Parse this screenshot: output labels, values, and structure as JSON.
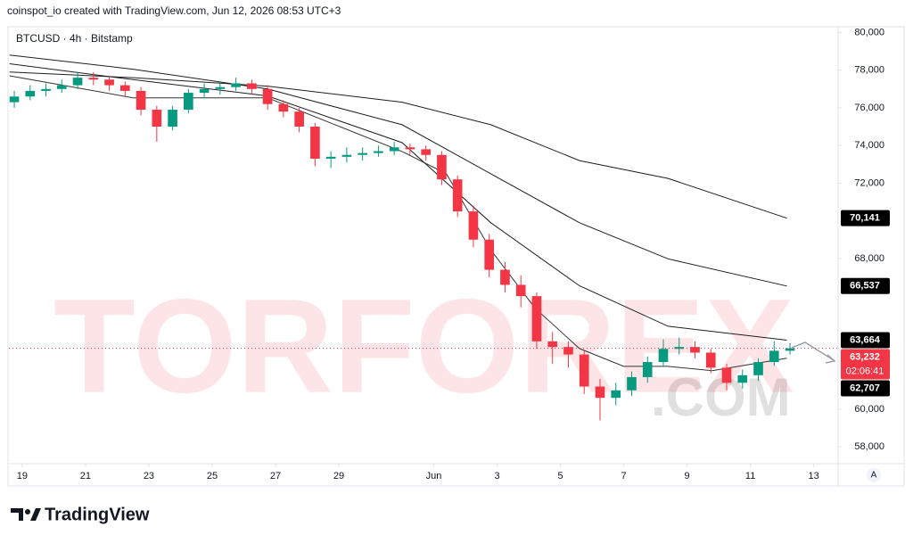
{
  "chart_data": {
    "type": "candlestick",
    "header": "coinspot_io created with TradingView.com, Jun 12, 2026 08:53 UTC+3",
    "title": "BTCUSD · 4h · Bitstamp",
    "brand": "TradingView",
    "scale_button": "A",
    "watermark": [
      "TORFOREX",
      ".COM"
    ],
    "up_color": "#089981",
    "down_color": "#f23645",
    "x": [
      18.75,
      19.25,
      19.75,
      20.25,
      20.75,
      21.25,
      21.75,
      22.25,
      22.75,
      23.25,
      23.75,
      24.25,
      24.75,
      25.25,
      25.75,
      26.25,
      26.75,
      27.25,
      27.75,
      28.25,
      28.75,
      29.25,
      29.75,
      30.25,
      30.75,
      31.25,
      31.75,
      32.25,
      32.75,
      33.25,
      33.75,
      34.25,
      34.75,
      35.25,
      35.75,
      36.25,
      36.75,
      37.25,
      37.75,
      38.25,
      38.75,
      39.25,
      39.75,
      40.25,
      40.75,
      41.25,
      41.75,
      42.25,
      42.75,
      43.25
    ],
    "open": [
      76300,
      76600,
      76900,
      77000,
      77200,
      77600,
      77500,
      77200,
      76900,
      75900,
      75000,
      75900,
      76800,
      77000,
      77100,
      77300,
      77000,
      76200,
      75800,
      75000,
      73300,
      73400,
      73500,
      73600,
      73700,
      73900,
      73800,
      73500,
      72200,
      70500,
      69000,
      67400,
      66600,
      66000,
      63600,
      63300,
      62900,
      61200,
      60600,
      61000,
      61700,
      62500,
      63200,
      63300,
      63000,
      62200,
      61400,
      61800,
      62500,
      63100
    ],
    "high": [
      76900,
      77200,
      77300,
      77500,
      77900,
      77900,
      77700,
      77400,
      77100,
      76100,
      76100,
      77000,
      77300,
      77400,
      77600,
      77500,
      77200,
      76400,
      76000,
      75200,
      73700,
      73900,
      73900,
      74000,
      74200,
      74100,
      74000,
      73700,
      72400,
      70800,
      69300,
      67800,
      67100,
      66200,
      64100,
      63600,
      63100,
      61600,
      61400,
      62000,
      62800,
      63700,
      63800,
      63600,
      63200,
      62400,
      62100,
      62700,
      63600,
      63500
    ],
    "low": [
      76000,
      76400,
      76600,
      76800,
      77000,
      77200,
      76900,
      76600,
      75600,
      74200,
      74800,
      75700,
      76500,
      76700,
      76900,
      76700,
      75900,
      75500,
      74700,
      72900,
      72800,
      73100,
      73200,
      73400,
      73500,
      73500,
      73200,
      71900,
      70200,
      68600,
      67000,
      66200,
      65400,
      63200,
      62400,
      62200,
      60800,
      59400,
      60200,
      60700,
      61400,
      62300,
      62900,
      62700,
      61900,
      61000,
      61100,
      61500,
      62300,
      62900
    ],
    "close": [
      76600,
      76900,
      77000,
      77200,
      77600,
      77500,
      77200,
      76900,
      75900,
      75000,
      75900,
      76800,
      77000,
      77100,
      77300,
      77000,
      76200,
      75800,
      75000,
      73300,
      73400,
      73500,
      73600,
      73700,
      73900,
      73800,
      73500,
      72200,
      70500,
      69000,
      67400,
      66600,
      66000,
      63600,
      63300,
      62900,
      61200,
      60600,
      61000,
      61700,
      62500,
      63200,
      63300,
      63000,
      62200,
      61400,
      61800,
      62500,
      63100,
      63232
    ],
    "series": [
      {
        "color": "#1e1e1e",
        "x": [
          18.6,
          22.5,
          26.75,
          31,
          33.8,
          36.6,
          39.4,
          43.15
        ],
        "values": [
          77900,
          77600,
          77150,
          76300,
          75100,
          73200,
          72250,
          70141
        ]
      },
      {
        "color": "#1e1e1e",
        "x": [
          18.6,
          22.5,
          26.75,
          31,
          33.8,
          36.6,
          39.4,
          43.15
        ],
        "values": [
          78800,
          78050,
          77000,
          75100,
          72500,
          69900,
          67980,
          66537
        ]
      },
      {
        "color": "#1e1e1e",
        "x": [
          18.6,
          22.5,
          26.75,
          31,
          33.8,
          36.6,
          39.4,
          43.15
        ],
        "values": [
          78340,
          77500,
          76630,
          74150,
          69900,
          66550,
          64400,
          63664
        ]
      },
      {
        "color": "#333333",
        "x": [
          18.6,
          22.5,
          26.75,
          31,
          32.4,
          33.8,
          35.2,
          36.6,
          38,
          39.4,
          40.8,
          43.15
        ],
        "values": [
          77700,
          76530,
          76530,
          73680,
          72500,
          68450,
          65360,
          63220,
          62270,
          62270,
          62040,
          62707
        ]
      }
    ],
    "price_labels": [
      {
        "value": 70141,
        "label": "70,141",
        "color": "#000000"
      },
      {
        "value": 66537,
        "label": "66,537",
        "color": "#000000"
      },
      {
        "value": 63664,
        "label": "63,664",
        "color": "#000000"
      },
      {
        "value": 63232,
        "label": "63,232",
        "color": "#f23645"
      },
      {
        "value": 62707,
        "label": "62,707",
        "color": "#000000"
      }
    ],
    "countdown": "02:06:41",
    "xlim": [
      18.58,
      44.77
    ],
    "ylim": [
      57200,
      80400
    ],
    "xticks": [
      19,
      21,
      23,
      25,
      27,
      29,
      {
        "value": 32,
        "label": "Jun"
      },
      {
        "value": 34,
        "label": "3"
      },
      {
        "value": 36,
        "label": "5"
      },
      {
        "value": 38,
        "label": "7"
      },
      {
        "value": 40,
        "label": "9"
      },
      {
        "value": 42,
        "label": "11"
      },
      {
        "value": 44,
        "label": "13"
      }
    ],
    "yticks": [
      {
        "value": 80000,
        "label": "80,000"
      },
      {
        "value": 78000,
        "label": "78,000"
      },
      {
        "value": 76000,
        "label": "76,000"
      },
      {
        "value": 74000,
        "label": "74,000"
      },
      {
        "value": 72000,
        "label": "72,000"
      },
      {
        "value": 68000,
        "label": "68,000"
      },
      {
        "value": 60000,
        "label": "60,000"
      },
      {
        "value": 58000,
        "label": "58,000"
      }
    ]
  }
}
